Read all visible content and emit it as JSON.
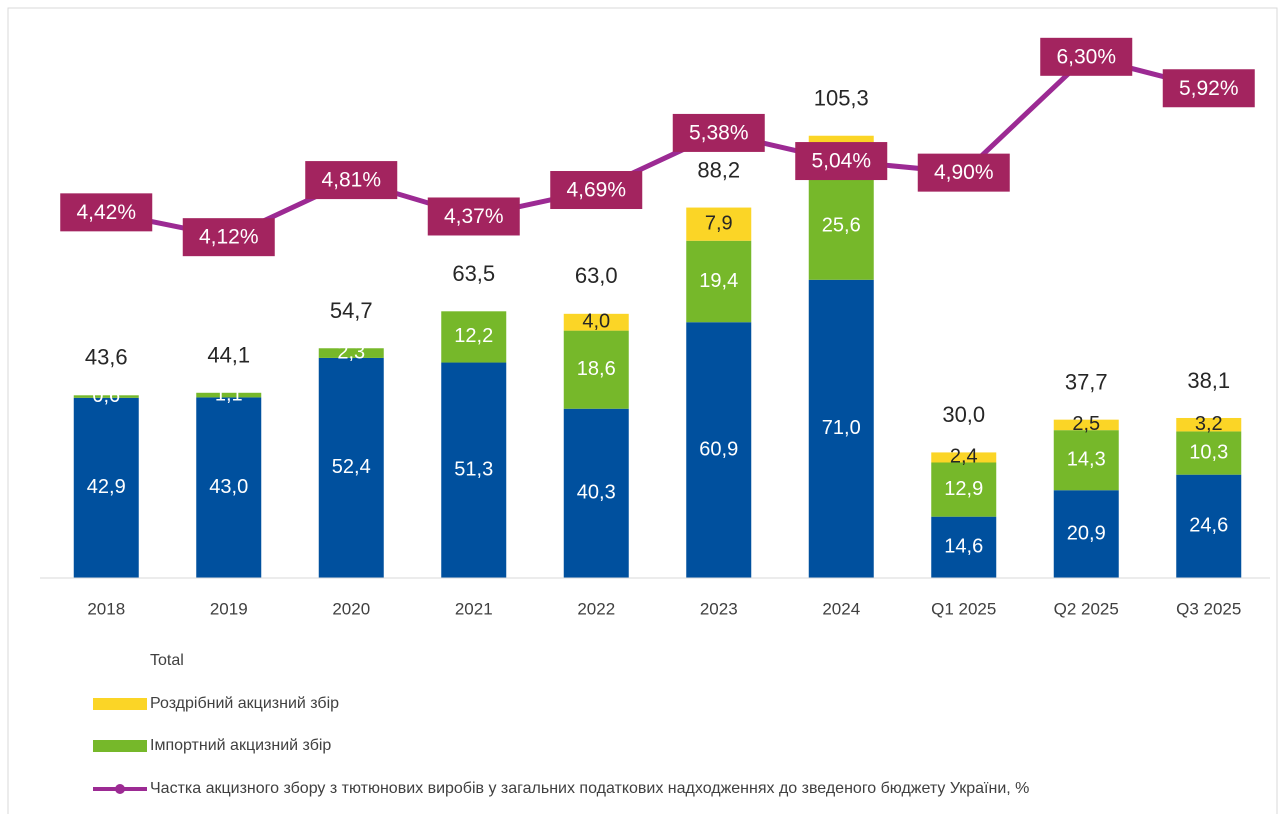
{
  "chart_data": {
    "type": "stacked_bar_line",
    "categories": [
      "2018",
      "2019",
      "2020",
      "2021",
      "2022",
      "2023",
      "2024",
      "Q1 2025",
      "Q2 2025",
      "Q3 2025"
    ],
    "ylim": [
      0,
      130
    ],
    "y2lim": [
      0,
      6.6
    ],
    "series": [
      {
        "color": "#00509e",
        "values": [
          42.9,
          43.0,
          52.4,
          51.3,
          40.3,
          60.9,
          71.0,
          14.6,
          20.9,
          24.6
        ],
        "value_labels": [
          "42,9",
          "43,0",
          "52,4",
          "51,3",
          "40,3",
          "60,9",
          "71,0",
          "14,6",
          "20,9",
          "24,6"
        ]
      },
      {
        "name": "Імпортний акцизний збір",
        "color": "#76b82a",
        "values": [
          0.6,
          1.1,
          2.3,
          12.2,
          18.6,
          19.4,
          25.6,
          12.9,
          14.3,
          10.3
        ],
        "value_labels": [
          "0,6",
          "1,1",
          "2,3",
          "12,2",
          "18,6",
          "19,4",
          "25,6",
          "12,9",
          "14,3",
          "10,3"
        ]
      },
      {
        "name": "Роздрібний акцизний збір",
        "color": "#fbd526",
        "values": [
          null,
          null,
          null,
          null,
          4.0,
          7.9,
          8.7,
          2.4,
          2.5,
          3.2
        ],
        "value_labels": [
          null,
          null,
          null,
          null,
          "4,0",
          "7,9",
          "8,7",
          "2,4",
          "2,5",
          "3,2"
        ]
      },
      {
        "name": "Частка акцизного збору з тютюнових виробів у загальних податкових надходженнях до зведеного бюджету України, %",
        "color": "#9c2a93",
        "axis": "y2",
        "label_color": "#a3245f",
        "values": [
          4.42,
          4.12,
          4.81,
          4.37,
          4.69,
          5.38,
          5.04,
          4.9,
          6.3,
          5.92
        ],
        "value_labels": [
          "4,42%",
          "4,12%",
          "4,81%",
          "4,37%",
          "4,69%",
          "5,38%",
          "5,04%",
          "4,90%",
          "6,30%",
          "5,92%"
        ]
      }
    ],
    "totals": {
      "name": "Total",
      "values": [
        43.6,
        44.1,
        54.7,
        63.5,
        63.0,
        88.2,
        105.3,
        30.0,
        37.7,
        38.1
      ],
      "value_labels": [
        "43,6",
        "44,1",
        "54,7",
        "63,5",
        "63,0",
        "88,2",
        "105,3",
        "30,0",
        "37,7",
        "38,1"
      ]
    }
  }
}
